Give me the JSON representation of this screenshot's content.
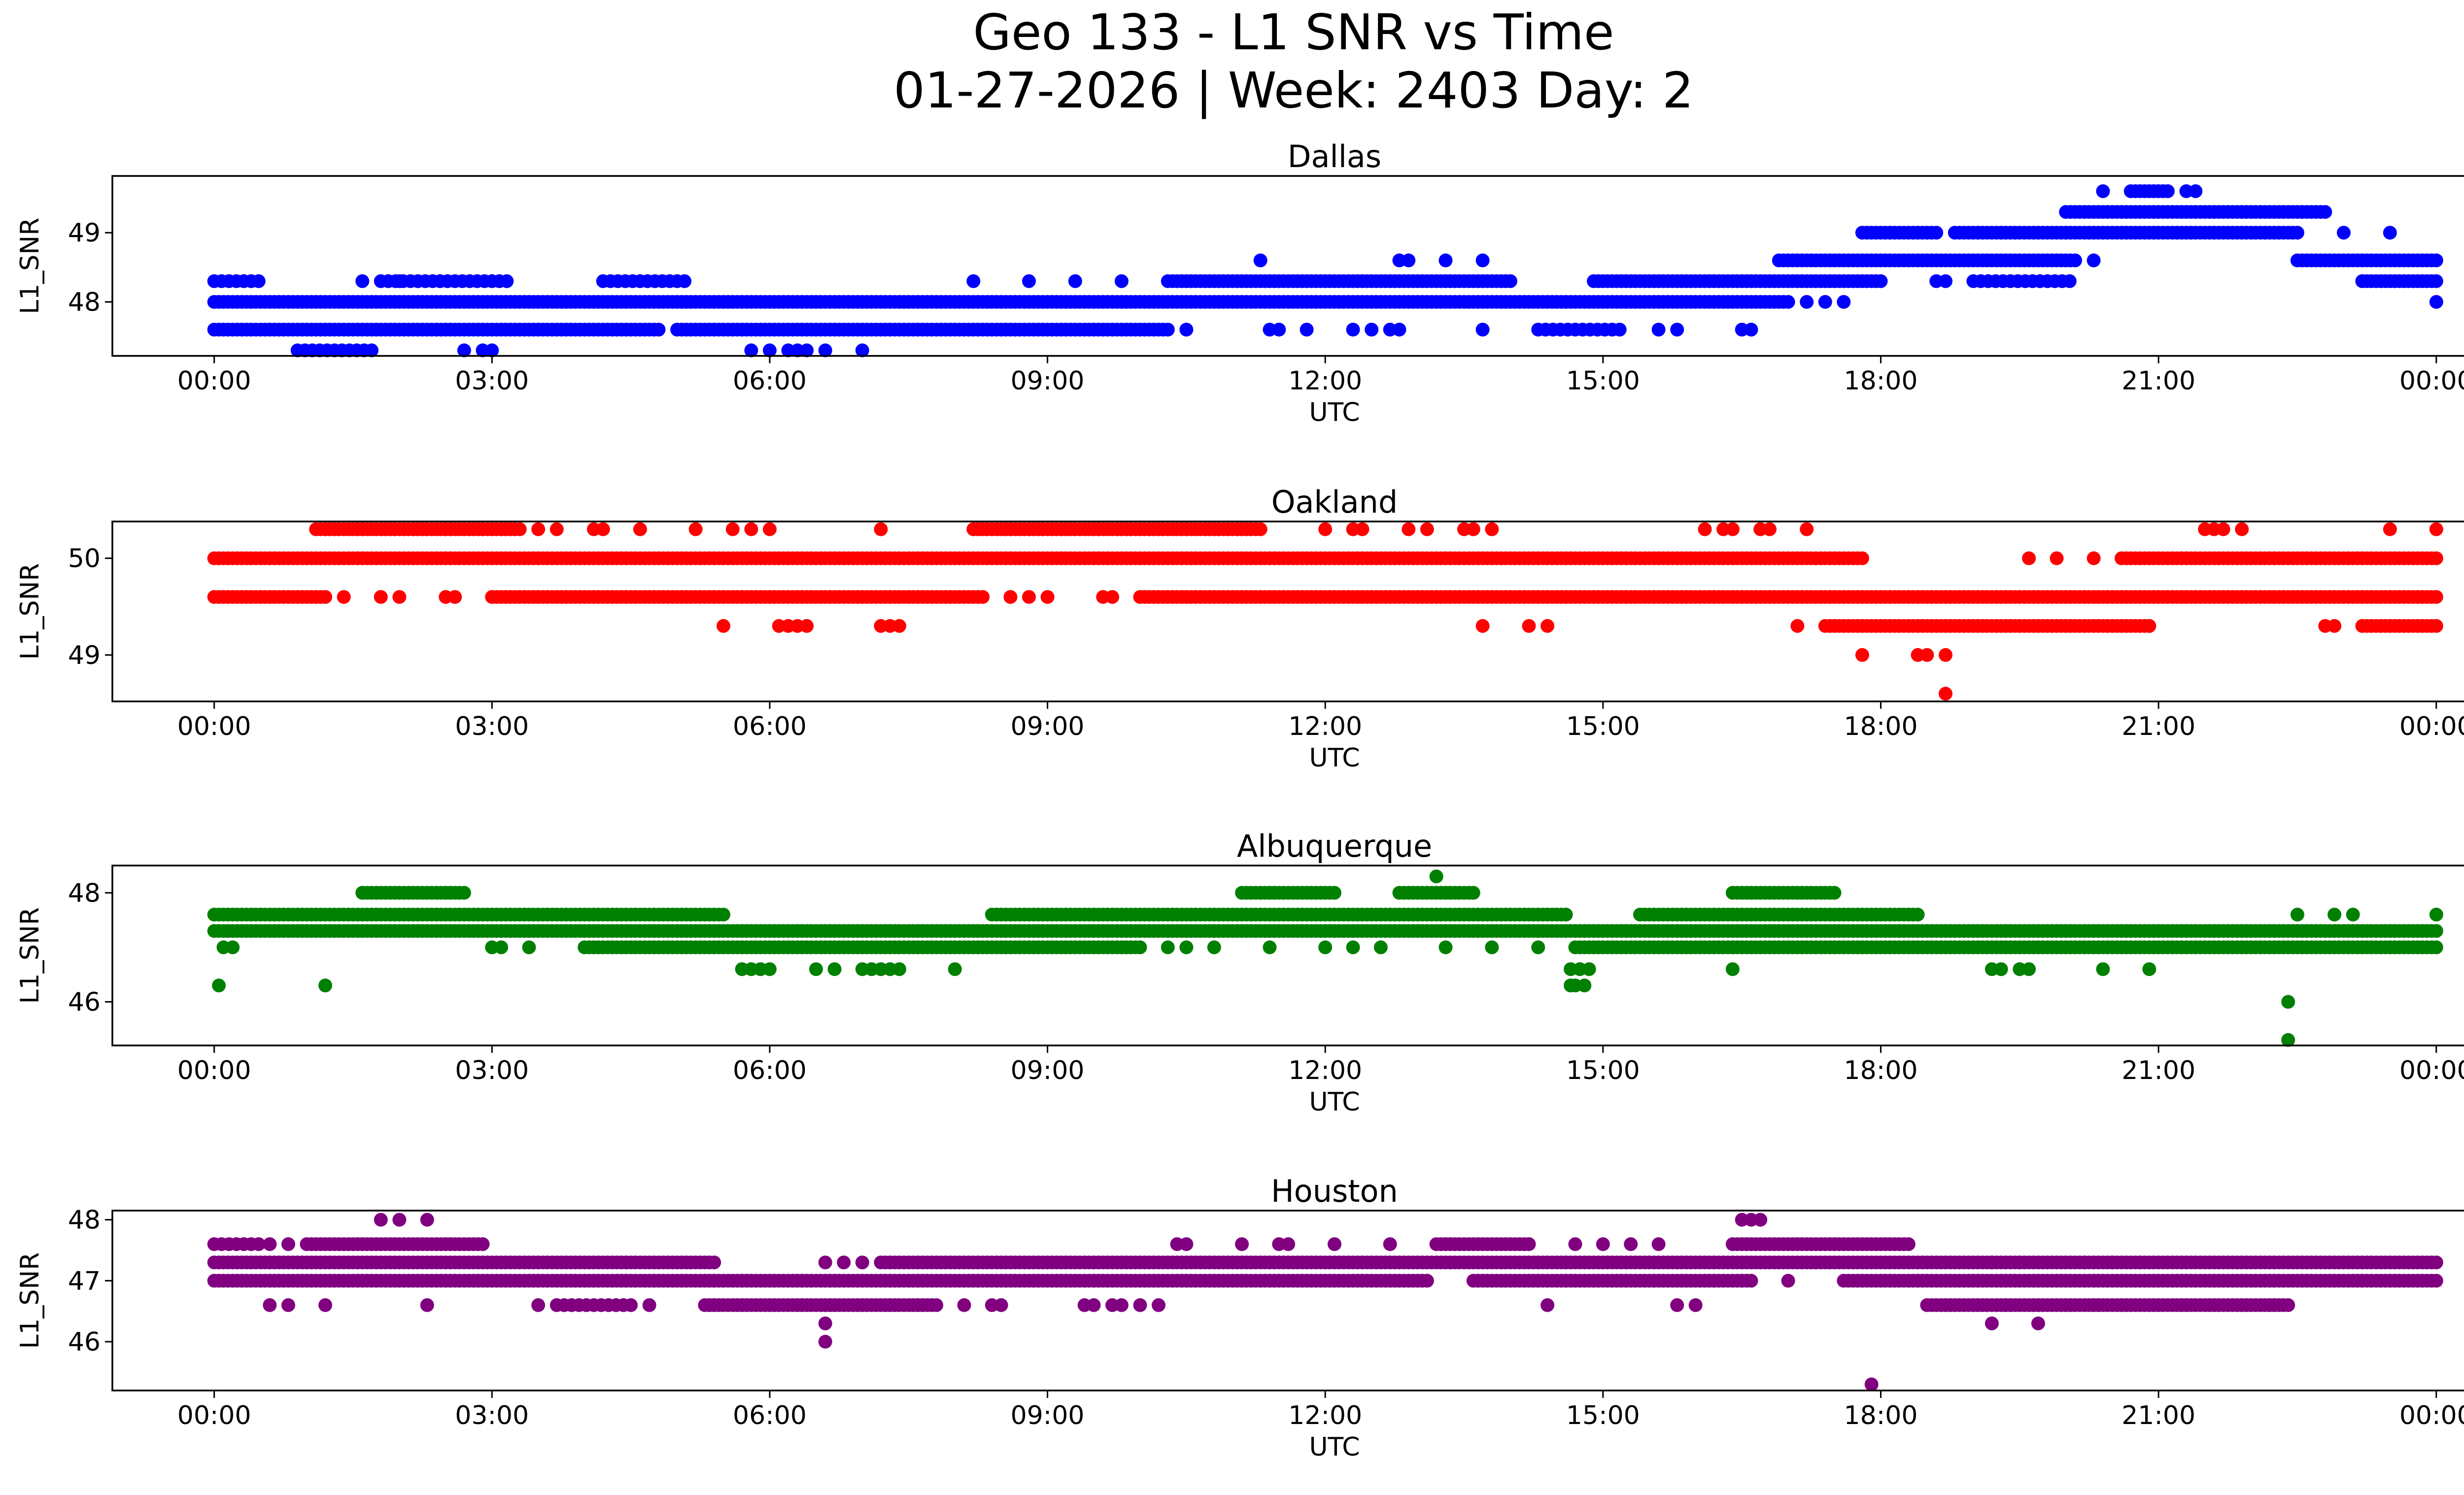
{
  "figure": {
    "title_line1": "Geo 133 - L1 SNR vs Time",
    "title_line2": "01-27-2026 | Week: 2403 Day: 2"
  },
  "chart_data": [
    {
      "type": "scatter",
      "title": "Dallas",
      "xlabel": "UTC",
      "ylabel": "L1_SNR",
      "color": "#0000ff",
      "xlim": [
        -1.1,
        25.3
      ],
      "ylim": [
        47.22,
        49.82
      ],
      "x_ticks": [
        0,
        3,
        6,
        9,
        12,
        15,
        18,
        21,
        24
      ],
      "x_tick_labels": [
        "00:00",
        "03:00",
        "06:00",
        "09:00",
        "12:00",
        "15:00",
        "18:00",
        "21:00",
        "00:00"
      ],
      "y_ticks": [
        48,
        49
      ],
      "y_tick_labels": [
        "48",
        "49"
      ],
      "segments": [
        {
          "y": 48.0,
          "from": 0.0,
          "to": 17.0,
          "step": 0.05
        },
        {
          "y": 47.6,
          "from": 0.0,
          "to": 4.8,
          "step": 0.05
        },
        {
          "y": 47.6,
          "from": 5.0,
          "to": 10.3,
          "step": 0.05
        },
        {
          "y": 48.3,
          "from": 0.0,
          "to": 0.5,
          "step": 0.08
        },
        {
          "y": 48.3,
          "from": 1.8,
          "to": 3.2,
          "step": 0.08
        },
        {
          "y": 48.3,
          "from": 4.2,
          "to": 5.1,
          "step": 0.08
        },
        {
          "y": 48.3,
          "from": 10.3,
          "to": 14.0,
          "step": 0.05
        },
        {
          "y": 48.3,
          "from": 14.9,
          "to": 18.0,
          "step": 0.05
        },
        {
          "y": 47.3,
          "from": 0.9,
          "to": 1.7,
          "step": 0.08
        },
        {
          "y": 47.6,
          "from": 14.3,
          "to": 15.2,
          "step": 0.08
        },
        {
          "y": 48.6,
          "from": 16.9,
          "to": 20.1,
          "step": 0.05
        },
        {
          "y": 48.6,
          "from": 22.5,
          "to": 24.0,
          "step": 0.05
        },
        {
          "y": 49.0,
          "from": 17.8,
          "to": 18.6,
          "step": 0.05
        },
        {
          "y": 49.0,
          "from": 18.8,
          "to": 20.0,
          "step": 0.05
        },
        {
          "y": 49.0,
          "from": 20.0,
          "to": 22.5,
          "step": 0.05
        },
        {
          "y": 49.3,
          "from": 20.0,
          "to": 22.8,
          "step": 0.05
        },
        {
          "y": 49.6,
          "from": 20.7,
          "to": 21.1,
          "step": 0.05
        },
        {
          "y": 48.3,
          "from": 23.2,
          "to": 24.0,
          "step": 0.05
        },
        {
          "y": 48.3,
          "from": 19.0,
          "to": 20.1,
          "step": 0.08
        }
      ],
      "points": [
        [
          1.6,
          48.3
        ],
        [
          2.0,
          48.3
        ],
        [
          3.0,
          47.3
        ],
        [
          2.7,
          47.3
        ],
        [
          2.9,
          47.3
        ],
        [
          5.8,
          47.3
        ],
        [
          6.0,
          47.3
        ],
        [
          6.2,
          47.3
        ],
        [
          6.3,
          47.3
        ],
        [
          6.4,
          47.3
        ],
        [
          6.6,
          47.3
        ],
        [
          7.0,
          47.3
        ],
        [
          8.2,
          48.3
        ],
        [
          8.8,
          48.3
        ],
        [
          9.3,
          48.3
        ],
        [
          9.8,
          48.3
        ],
        [
          11.3,
          48.6
        ],
        [
          10.5,
          47.6
        ],
        [
          11.4,
          47.6
        ],
        [
          11.5,
          47.6
        ],
        [
          11.8,
          47.6
        ],
        [
          12.3,
          47.6
        ],
        [
          12.5,
          47.6
        ],
        [
          12.7,
          47.6
        ],
        [
          12.8,
          47.6
        ],
        [
          12.8,
          48.6
        ],
        [
          12.9,
          48.6
        ],
        [
          13.3,
          48.6
        ],
        [
          13.7,
          48.6
        ],
        [
          13.7,
          47.6
        ],
        [
          15.6,
          47.6
        ],
        [
          15.8,
          47.6
        ],
        [
          16.5,
          47.6
        ],
        [
          16.6,
          47.6
        ],
        [
          17.2,
          48.0
        ],
        [
          17.4,
          48.0
        ],
        [
          17.6,
          48.0
        ],
        [
          18.6,
          48.3
        ],
        [
          18.7,
          48.3
        ],
        [
          20.3,
          48.6
        ],
        [
          20.4,
          49.6
        ],
        [
          21.3,
          49.6
        ],
        [
          21.4,
          49.6
        ],
        [
          23.0,
          49.0
        ],
        [
          23.5,
          49.0
        ],
        [
          24.0,
          48.0
        ]
      ]
    },
    {
      "type": "scatter",
      "title": "Oakland",
      "xlabel": "UTC",
      "ylabel": "L1_SNR",
      "color": "#ff0000",
      "xlim": [
        -1.1,
        25.3
      ],
      "ylim": [
        48.52,
        50.38
      ],
      "x_ticks": [
        0,
        3,
        6,
        9,
        12,
        15,
        18,
        21,
        24
      ],
      "x_tick_labels": [
        "00:00",
        "03:00",
        "06:00",
        "09:00",
        "12:00",
        "15:00",
        "18:00",
        "21:00",
        "00:00"
      ],
      "y_ticks": [
        49,
        50
      ],
      "y_tick_labels": [
        "49",
        "50"
      ],
      "segments": [
        {
          "y": 50.0,
          "from": 0.0,
          "to": 17.8,
          "step": 0.05
        },
        {
          "y": 50.0,
          "from": 20.6,
          "to": 24.0,
          "step": 0.05
        },
        {
          "y": 49.6,
          "from": 0.0,
          "to": 1.2,
          "step": 0.05
        },
        {
          "y": 49.6,
          "from": 3.0,
          "to": 8.3,
          "step": 0.05
        },
        {
          "y": 49.6,
          "from": 10.0,
          "to": 24.0,
          "step": 0.05
        },
        {
          "y": 50.3,
          "from": 1.1,
          "to": 3.3,
          "step": 0.05
        },
        {
          "y": 50.3,
          "from": 8.2,
          "to": 11.3,
          "step": 0.05
        },
        {
          "y": 49.3,
          "from": 17.4,
          "to": 20.9,
          "step": 0.05
        },
        {
          "y": 49.3,
          "from": 23.2,
          "to": 24.0,
          "step": 0.05
        }
      ],
      "points": [
        [
          1.4,
          49.6
        ],
        [
          1.8,
          49.6
        ],
        [
          2.0,
          49.6
        ],
        [
          2.5,
          49.6
        ],
        [
          2.6,
          49.6
        ],
        [
          8.6,
          49.6
        ],
        [
          8.8,
          49.6
        ],
        [
          9.0,
          49.6
        ],
        [
          9.6,
          49.6
        ],
        [
          9.7,
          49.6
        ],
        [
          3.5,
          50.3
        ],
        [
          3.7,
          50.3
        ],
        [
          4.1,
          50.3
        ],
        [
          4.2,
          50.3
        ],
        [
          4.6,
          50.3
        ],
        [
          5.2,
          50.3
        ],
        [
          5.6,
          50.3
        ],
        [
          5.8,
          50.3
        ],
        [
          6.0,
          50.3
        ],
        [
          7.2,
          50.3
        ],
        [
          5.5,
          49.3
        ],
        [
          6.1,
          49.3
        ],
        [
          6.2,
          49.3
        ],
        [
          6.3,
          49.3
        ],
        [
          6.4,
          49.3
        ],
        [
          7.2,
          49.3
        ],
        [
          7.3,
          49.3
        ],
        [
          7.4,
          49.3
        ],
        [
          12.0,
          50.3
        ],
        [
          12.3,
          50.3
        ],
        [
          12.4,
          50.3
        ],
        [
          12.9,
          50.3
        ],
        [
          13.1,
          50.3
        ],
        [
          13.5,
          50.3
        ],
        [
          13.6,
          50.3
        ],
        [
          13.8,
          50.3
        ],
        [
          13.7,
          49.3
        ],
        [
          14.2,
          49.3
        ],
        [
          14.4,
          49.3
        ],
        [
          16.1,
          50.3
        ],
        [
          16.3,
          50.3
        ],
        [
          16.4,
          50.3
        ],
        [
          16.7,
          50.3
        ],
        [
          16.8,
          50.3
        ],
        [
          17.2,
          50.3
        ],
        [
          17.1,
          49.3
        ],
        [
          17.8,
          49.0
        ],
        [
          18.4,
          49.0
        ],
        [
          18.5,
          49.0
        ],
        [
          18.7,
          49.0
        ],
        [
          18.7,
          48.6
        ],
        [
          20.9,
          49.3
        ],
        [
          22.8,
          49.3
        ],
        [
          22.9,
          49.3
        ],
        [
          19.6,
          50.0
        ],
        [
          19.9,
          50.0
        ],
        [
          20.3,
          50.0
        ],
        [
          21.5,
          50.3
        ],
        [
          21.6,
          50.3
        ],
        [
          21.7,
          50.3
        ],
        [
          21.9,
          50.3
        ],
        [
          23.5,
          50.3
        ],
        [
          24.0,
          50.3
        ]
      ]
    },
    {
      "type": "scatter",
      "title": "Albuquerque",
      "xlabel": "UTC",
      "ylabel": "L1_SNR",
      "color": "#008000",
      "xlim": [
        -1.1,
        25.3
      ],
      "ylim": [
        45.2,
        48.5
      ],
      "x_ticks": [
        0,
        3,
        6,
        9,
        12,
        15,
        18,
        21,
        24
      ],
      "x_tick_labels": [
        "00:00",
        "03:00",
        "06:00",
        "09:00",
        "12:00",
        "15:00",
        "18:00",
        "21:00",
        "00:00"
      ],
      "y_ticks": [
        46,
        48
      ],
      "y_tick_labels": [
        "46",
        "48"
      ],
      "segments": [
        {
          "y": 47.3,
          "from": 0.0,
          "to": 14.8,
          "step": 0.05
        },
        {
          "y": 47.3,
          "from": 14.8,
          "to": 18.2,
          "step": 0.05
        },
        {
          "y": 47.3,
          "from": 18.2,
          "to": 24.0,
          "step": 0.05
        },
        {
          "y": 47.6,
          "from": 0.0,
          "to": 5.5,
          "step": 0.05
        },
        {
          "y": 47.6,
          "from": 8.4,
          "to": 14.6,
          "step": 0.05
        },
        {
          "y": 47.6,
          "from": 15.4,
          "to": 18.4,
          "step": 0.05
        },
        {
          "y": 47.0,
          "from": 4.0,
          "to": 10.0,
          "step": 0.05
        },
        {
          "y": 47.0,
          "from": 14.7,
          "to": 24.0,
          "step": 0.05
        },
        {
          "y": 48.0,
          "from": 1.6,
          "to": 2.7,
          "step": 0.05
        },
        {
          "y": 48.0,
          "from": 11.1,
          "to": 12.1,
          "step": 0.05
        },
        {
          "y": 48.0,
          "from": 12.8,
          "to": 13.6,
          "step": 0.05
        },
        {
          "y": 48.0,
          "from": 16.4,
          "to": 17.5,
          "step": 0.05
        }
      ],
      "points": [
        [
          0.05,
          46.3
        ],
        [
          0.1,
          47.0
        ],
        [
          0.2,
          47.0
        ],
        [
          1.2,
          46.3
        ],
        [
          3.0,
          47.0
        ],
        [
          3.1,
          47.0
        ],
        [
          3.4,
          47.0
        ],
        [
          5.7,
          46.6
        ],
        [
          5.8,
          46.6
        ],
        [
          5.9,
          46.6
        ],
        [
          6.0,
          46.6
        ],
        [
          6.5,
          46.6
        ],
        [
          6.7,
          46.6
        ],
        [
          7.0,
          46.6
        ],
        [
          7.1,
          46.6
        ],
        [
          7.2,
          46.6
        ],
        [
          7.3,
          46.6
        ],
        [
          7.4,
          46.6
        ],
        [
          8.0,
          46.6
        ],
        [
          10.3,
          47.0
        ],
        [
          10.5,
          47.0
        ],
        [
          10.8,
          47.0
        ],
        [
          11.4,
          47.0
        ],
        [
          12.0,
          47.0
        ],
        [
          12.3,
          47.0
        ],
        [
          12.6,
          47.0
        ],
        [
          13.2,
          48.3
        ],
        [
          13.3,
          47.0
        ],
        [
          13.8,
          47.0
        ],
        [
          14.3,
          47.0
        ],
        [
          14.65,
          46.3
        ],
        [
          14.7,
          46.3
        ],
        [
          14.8,
          46.3
        ],
        [
          14.65,
          46.6
        ],
        [
          14.75,
          46.6
        ],
        [
          14.85,
          46.6
        ],
        [
          16.4,
          46.6
        ],
        [
          16.4,
          47.0
        ],
        [
          17.8,
          47.0
        ],
        [
          19.2,
          46.6
        ],
        [
          19.3,
          46.6
        ],
        [
          19.5,
          46.6
        ],
        [
          19.6,
          46.6
        ],
        [
          20.4,
          46.6
        ],
        [
          20.9,
          46.6
        ],
        [
          22.4,
          46.0
        ],
        [
          22.4,
          45.3
        ],
        [
          22.5,
          47.6
        ],
        [
          22.9,
          47.6
        ],
        [
          23.1,
          47.6
        ],
        [
          24.0,
          47.6
        ]
      ]
    },
    {
      "type": "scatter",
      "title": "Houston",
      "xlabel": "UTC",
      "ylabel": "L1_SNR",
      "color": "#800080",
      "xlim": [
        -1.1,
        25.3
      ],
      "ylim": [
        45.2,
        48.15
      ],
      "x_ticks": [
        0,
        3,
        6,
        9,
        12,
        15,
        18,
        21,
        24
      ],
      "x_tick_labels": [
        "00:00",
        "03:00",
        "06:00",
        "09:00",
        "12:00",
        "15:00",
        "18:00",
        "21:00",
        "00:00"
      ],
      "y_ticks": [
        46,
        47,
        48
      ],
      "y_tick_labels": [
        "46",
        "47",
        "48"
      ],
      "segments": [
        {
          "y": 47.3,
          "from": 0.0,
          "to": 5.4,
          "step": 0.05
        },
        {
          "y": 47.3,
          "from": 7.2,
          "to": 24.0,
          "step": 0.05
        },
        {
          "y": 47.0,
          "from": 0.0,
          "to": 13.1,
          "step": 0.05
        },
        {
          "y": 47.0,
          "from": 13.6,
          "to": 16.6,
          "step": 0.05
        },
        {
          "y": 47.0,
          "from": 17.6,
          "to": 24.0,
          "step": 0.05
        },
        {
          "y": 47.6,
          "from": 0.0,
          "to": 0.5,
          "step": 0.08
        },
        {
          "y": 47.6,
          "from": 1.0,
          "to": 2.9,
          "step": 0.05
        },
        {
          "y": 47.6,
          "from": 13.2,
          "to": 14.2,
          "step": 0.05
        },
        {
          "y": 47.6,
          "from": 16.4,
          "to": 18.3,
          "step": 0.05
        },
        {
          "y": 46.6,
          "from": 5.3,
          "to": 7.8,
          "step": 0.05
        },
        {
          "y": 46.6,
          "from": 18.5,
          "to": 22.4,
          "step": 0.05
        },
        {
          "y": 46.6,
          "from": 3.7,
          "to": 4.5,
          "step": 0.08
        }
      ],
      "points": [
        [
          0.6,
          47.6
        ],
        [
          0.8,
          47.6
        ],
        [
          0.6,
          46.6
        ],
        [
          0.8,
          46.6
        ],
        [
          1.2,
          46.6
        ],
        [
          1.8,
          48.0
        ],
        [
          2.0,
          48.0
        ],
        [
          2.3,
          48.0
        ],
        [
          2.3,
          46.6
        ],
        [
          3.5,
          46.6
        ],
        [
          4.7,
          46.6
        ],
        [
          6.6,
          46.3
        ],
        [
          6.6,
          46.0
        ],
        [
          6.6,
          47.3
        ],
        [
          6.8,
          47.3
        ],
        [
          7.0,
          47.3
        ],
        [
          8.1,
          46.6
        ],
        [
          8.4,
          46.6
        ],
        [
          8.5,
          46.6
        ],
        [
          9.4,
          46.6
        ],
        [
          9.5,
          46.6
        ],
        [
          9.7,
          46.6
        ],
        [
          9.8,
          46.6
        ],
        [
          10.0,
          46.6
        ],
        [
          10.2,
          46.6
        ],
        [
          10.4,
          47.6
        ],
        [
          10.5,
          47.6
        ],
        [
          11.1,
          47.6
        ],
        [
          11.5,
          47.6
        ],
        [
          11.6,
          47.6
        ],
        [
          12.1,
          47.6
        ],
        [
          12.7,
          47.6
        ],
        [
          14.4,
          46.6
        ],
        [
          14.7,
          47.6
        ],
        [
          15.0,
          47.6
        ],
        [
          15.3,
          47.6
        ],
        [
          15.6,
          47.6
        ],
        [
          15.8,
          46.6
        ],
        [
          16.0,
          46.6
        ],
        [
          16.5,
          48.0
        ],
        [
          16.6,
          48.0
        ],
        [
          16.7,
          48.0
        ],
        [
          17.0,
          47.0
        ],
        [
          17.9,
          45.3
        ],
        [
          19.2,
          46.3
        ],
        [
          19.7,
          46.3
        ],
        [
          19.2,
          47.3
        ],
        [
          19.5,
          47.3
        ],
        [
          20.2,
          47.3
        ],
        [
          20.5,
          47.3
        ],
        [
          20.8,
          47.3
        ]
      ]
    }
  ]
}
